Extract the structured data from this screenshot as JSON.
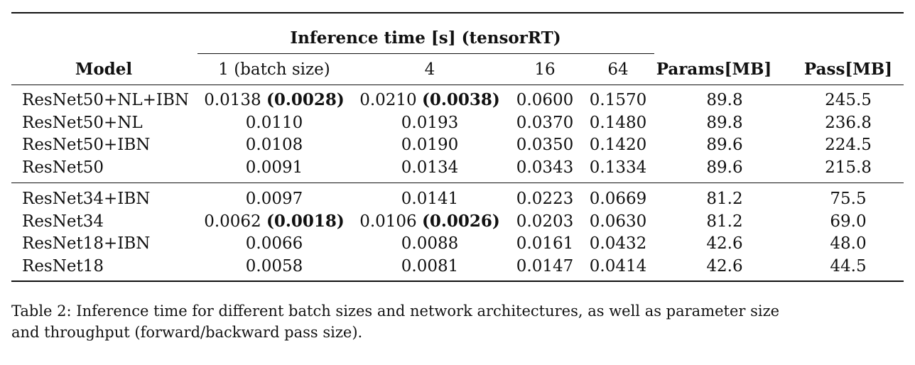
{
  "table": {
    "group_header": "Inference time [s] (tensorRT)",
    "columns": [
      "Model",
      "1 (batch size)",
      "4",
      "16",
      "64",
      "Params[MB]",
      "Pass[MB]"
    ],
    "groups": [
      [
        {
          "model": "ResNet50+NL+IBN",
          "b1": "0.0138",
          "b1_bold": "(0.0028)",
          "b4": "0.0210",
          "b4_bold": "(0.0038)",
          "b16": "0.0600",
          "b64": "0.1570",
          "params": "89.8",
          "pass": "245.5"
        },
        {
          "model": "ResNet50+NL",
          "b1": "0.0110",
          "b1_bold": "",
          "b4": "0.0193",
          "b4_bold": "",
          "b16": "0.0370",
          "b64": "0.1480",
          "params": "89.8",
          "pass": "236.8"
        },
        {
          "model": "ResNet50+IBN",
          "b1": "0.0108",
          "b1_bold": "",
          "b4": "0.0190",
          "b4_bold": "",
          "b16": "0.0350",
          "b64": "0.1420",
          "params": "89.6",
          "pass": "224.5"
        },
        {
          "model": "ResNet50",
          "b1": "0.0091",
          "b1_bold": "",
          "b4": "0.0134",
          "b4_bold": "",
          "b16": "0.0343",
          "b64": "0.1334",
          "params": "89.6",
          "pass": "215.8"
        }
      ],
      [
        {
          "model": "ResNet34+IBN",
          "b1": "0.0097",
          "b1_bold": "",
          "b4": "0.0141",
          "b4_bold": "",
          "b16": "0.0223",
          "b64": "0.0669",
          "params": "81.2",
          "pass": "75.5"
        },
        {
          "model": "ResNet34",
          "b1": "0.0062",
          "b1_bold": "(0.0018)",
          "b4": "0.0106",
          "b4_bold": "(0.0026)",
          "b16": "0.0203",
          "b64": "0.0630",
          "params": "81.2",
          "pass": "69.0"
        },
        {
          "model": "ResNet18+IBN",
          "b1": "0.0066",
          "b1_bold": "",
          "b4": "0.0088",
          "b4_bold": "",
          "b16": "0.0161",
          "b64": "0.0432",
          "params": "42.6",
          "pass": "48.0"
        },
        {
          "model": "ResNet18",
          "b1": "0.0058",
          "b1_bold": "",
          "b4": "0.0081",
          "b4_bold": "",
          "b16": "0.0147",
          "b64": "0.0414",
          "params": "42.6",
          "pass": "44.5"
        }
      ]
    ]
  },
  "caption": "Table 2: Inference time for different batch sizes and network architectures, as well as parameter size\nand throughput (forward/backward pass size)."
}
